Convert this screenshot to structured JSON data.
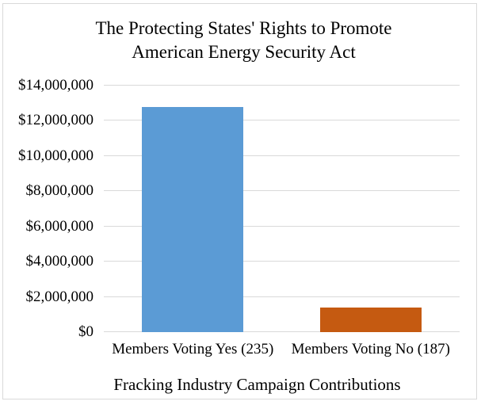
{
  "title": {
    "line1": "The Protecting States' Rights to Promote",
    "line2": "American Energy Security Act"
  },
  "chart_data": {
    "type": "bar",
    "title": "The Protecting States' Rights to Promote American Energy Security Act",
    "categories": [
      "Members Voting Yes (235)",
      "Members Voting No (187)"
    ],
    "values": [
      12800000,
      1400000
    ],
    "xlabel": "Fracking Industry Campaign Contributions",
    "ylim": [
      0,
      14000000
    ],
    "ytick_step": 2000000,
    "ytick_labels": [
      "$0",
      "$2,000,000",
      "$4,000,000",
      "$6,000,000",
      "$8,000,000",
      "$10,000,000",
      "$12,000,000",
      "$14,000,000"
    ],
    "grid": true,
    "legend": "none",
    "bar_colors": [
      "#5B9BD5",
      "#C55A11"
    ]
  },
  "colors": {
    "gridline": "#D9D9D9",
    "frame_border": "#D9D9D9",
    "text": "#000000",
    "background": "#FFFFFF"
  }
}
